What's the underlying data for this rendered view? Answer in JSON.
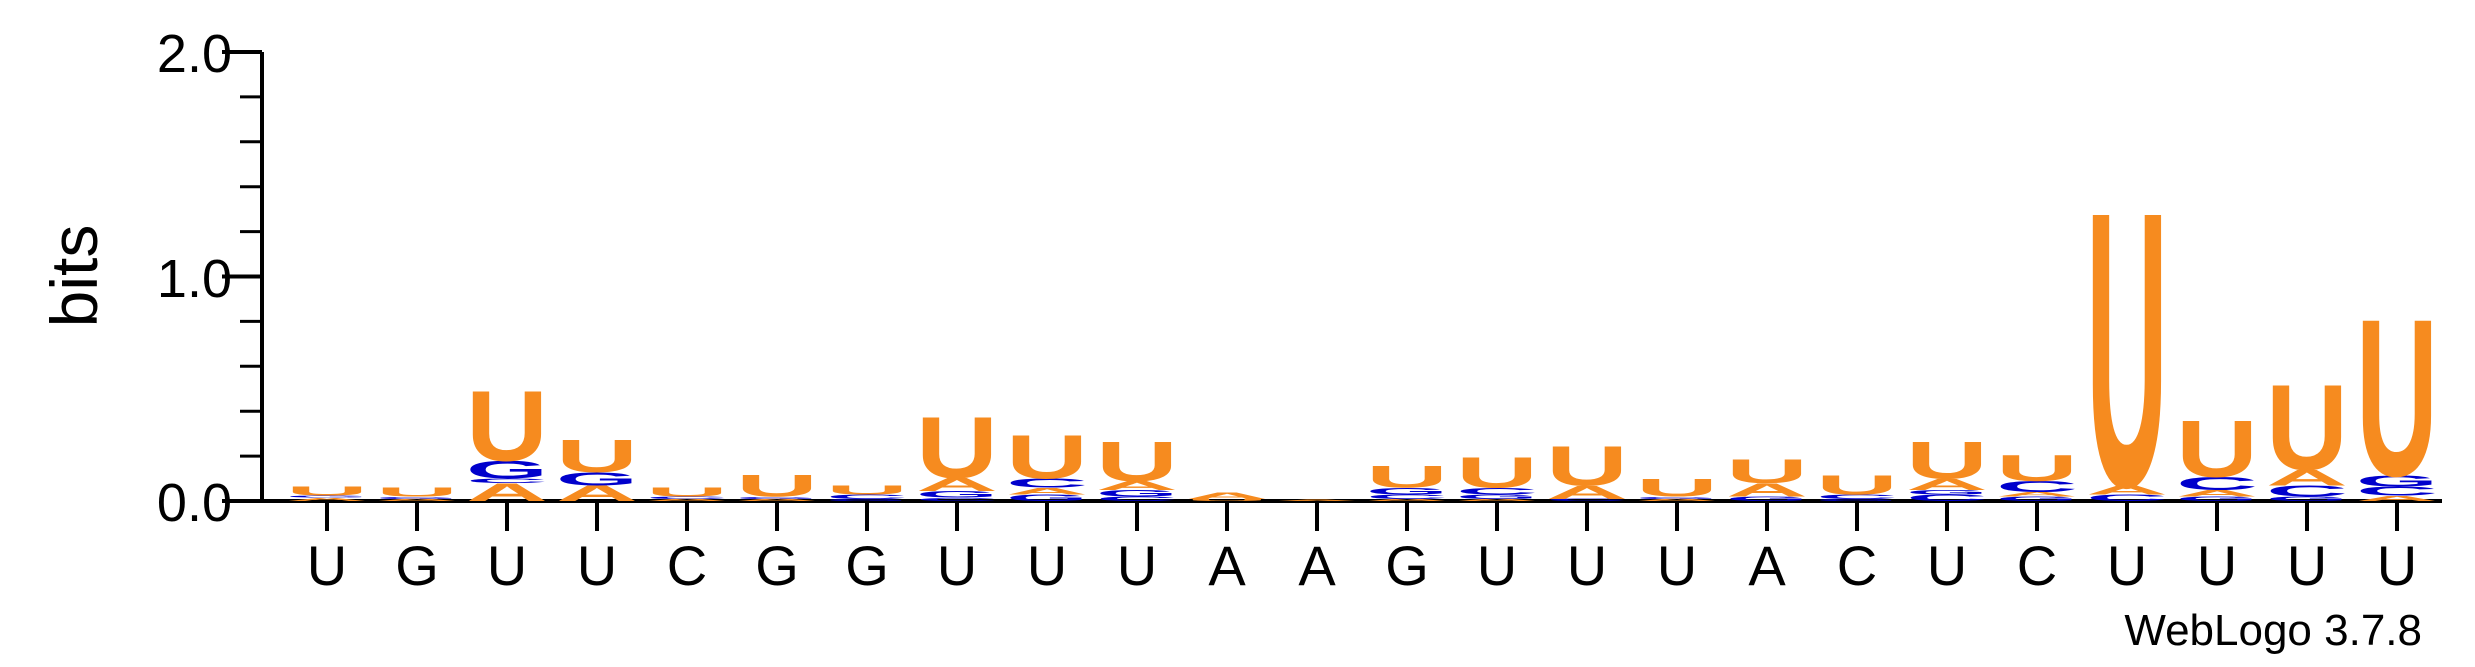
{
  "colors": {
    "U": "#f68b1f",
    "A": "#f68b1f",
    "G": "#0000cc",
    "C": "#0000cc",
    "axis": "#000000"
  },
  "chart_data": {
    "type": "sequence-logo",
    "ylabel": "bits",
    "ylim": [
      0,
      2.0
    ],
    "yticks": [
      "0.0",
      "1.0",
      "2.0"
    ],
    "credit": "WebLogo 3.7.8",
    "positions": [
      {
        "label": "U",
        "stack": [
          {
            "letter": "A",
            "bits": 0.015
          },
          {
            "letter": "G",
            "bits": 0.01
          },
          {
            "letter": "U",
            "bits": 0.04
          }
        ]
      },
      {
        "label": "G",
        "stack": [
          {
            "letter": "A",
            "bits": 0.01
          },
          {
            "letter": "G",
            "bits": 0.01
          },
          {
            "letter": "U",
            "bits": 0.04
          }
        ]
      },
      {
        "label": "U",
        "stack": [
          {
            "letter": "A",
            "bits": 0.08
          },
          {
            "letter": "C",
            "bits": 0.02
          },
          {
            "letter": "G",
            "bits": 0.08
          },
          {
            "letter": "U",
            "bits": 0.32
          }
        ]
      },
      {
        "label": "U",
        "stack": [
          {
            "letter": "A",
            "bits": 0.07
          },
          {
            "letter": "G",
            "bits": 0.06
          },
          {
            "letter": "U",
            "bits": 0.15
          }
        ]
      },
      {
        "label": "C",
        "stack": [
          {
            "letter": "A",
            "bits": 0.01
          },
          {
            "letter": "C",
            "bits": 0.01
          },
          {
            "letter": "U",
            "bits": 0.04
          }
        ]
      },
      {
        "label": "G",
        "stack": [
          {
            "letter": "A",
            "bits": 0.01
          },
          {
            "letter": "G",
            "bits": 0.01
          },
          {
            "letter": "U",
            "bits": 0.1
          }
        ]
      },
      {
        "label": "G",
        "stack": [
          {
            "letter": "G",
            "bits": 0.01
          },
          {
            "letter": "C",
            "bits": 0.02
          },
          {
            "letter": "U",
            "bits": 0.04
          }
        ]
      },
      {
        "label": "U",
        "stack": [
          {
            "letter": "C",
            "bits": 0.015
          },
          {
            "letter": "G",
            "bits": 0.03
          },
          {
            "letter": "A",
            "bits": 0.06
          },
          {
            "letter": "U",
            "bits": 0.28
          }
        ]
      },
      {
        "label": "U",
        "stack": [
          {
            "letter": "G",
            "bits": 0.03
          },
          {
            "letter": "A",
            "bits": 0.03
          },
          {
            "letter": "C",
            "bits": 0.04
          },
          {
            "letter": "U",
            "bits": 0.2
          }
        ]
      },
      {
        "label": "U",
        "stack": [
          {
            "letter": "C",
            "bits": 0.02
          },
          {
            "letter": "G",
            "bits": 0.03
          },
          {
            "letter": "A",
            "bits": 0.04
          },
          {
            "letter": "U",
            "bits": 0.18
          }
        ]
      },
      {
        "label": "A",
        "stack": [
          {
            "letter": "U",
            "bits": 0.01
          },
          {
            "letter": "A",
            "bits": 0.03
          }
        ]
      },
      {
        "label": "A",
        "stack": [
          {
            "letter": "A",
            "bits": 0.005
          }
        ]
      },
      {
        "label": "G",
        "stack": [
          {
            "letter": "A",
            "bits": 0.01
          },
          {
            "letter": "C",
            "bits": 0.02
          },
          {
            "letter": "G",
            "bits": 0.03
          },
          {
            "letter": "U",
            "bits": 0.1
          }
        ]
      },
      {
        "label": "U",
        "stack": [
          {
            "letter": "A",
            "bits": 0.01
          },
          {
            "letter": "G",
            "bits": 0.02
          },
          {
            "letter": "C",
            "bits": 0.03
          },
          {
            "letter": "U",
            "bits": 0.14
          }
        ]
      },
      {
        "label": "U",
        "stack": [
          {
            "letter": "C",
            "bits": 0.01
          },
          {
            "letter": "A",
            "bits": 0.06
          },
          {
            "letter": "U",
            "bits": 0.18
          }
        ]
      },
      {
        "label": "U",
        "stack": [
          {
            "letter": "A",
            "bits": 0.01
          },
          {
            "letter": "G",
            "bits": 0.01
          },
          {
            "letter": "U",
            "bits": 0.08
          }
        ]
      },
      {
        "label": "A",
        "stack": [
          {
            "letter": "G",
            "bits": 0.02
          },
          {
            "letter": "A",
            "bits": 0.06
          },
          {
            "letter": "U",
            "bits": 0.11
          }
        ]
      },
      {
        "label": "C",
        "stack": [
          {
            "letter": "G",
            "bits": 0.01
          },
          {
            "letter": "C",
            "bits": 0.02
          },
          {
            "letter": "U",
            "bits": 0.09
          }
        ]
      },
      {
        "label": "U",
        "stack": [
          {
            "letter": "C",
            "bits": 0.03
          },
          {
            "letter": "G",
            "bits": 0.02
          },
          {
            "letter": "A",
            "bits": 0.05
          },
          {
            "letter": "U",
            "bits": 0.17
          }
        ]
      },
      {
        "label": "C",
        "stack": [
          {
            "letter": "G",
            "bits": 0.02
          },
          {
            "letter": "A",
            "bits": 0.02
          },
          {
            "letter": "C",
            "bits": 0.05
          },
          {
            "letter": "U",
            "bits": 0.12
          }
        ]
      },
      {
        "label": "U",
        "stack": [
          {
            "letter": "C",
            "bits": 0.03
          },
          {
            "letter": "A",
            "bits": 0.04
          },
          {
            "letter": "U",
            "bits": 1.26
          }
        ]
      },
      {
        "label": "U",
        "stack": [
          {
            "letter": "G",
            "bits": 0.02
          },
          {
            "letter": "A",
            "bits": 0.03
          },
          {
            "letter": "C",
            "bits": 0.06
          },
          {
            "letter": "U",
            "bits": 0.26
          }
        ]
      },
      {
        "label": "U",
        "stack": [
          {
            "letter": "G",
            "bits": 0.02
          },
          {
            "letter": "C",
            "bits": 0.05
          },
          {
            "letter": "A",
            "bits": 0.07
          },
          {
            "letter": "U",
            "bits": 0.39
          }
        ]
      },
      {
        "label": "U",
        "stack": [
          {
            "letter": "A",
            "bits": 0.025
          },
          {
            "letter": "C",
            "bits": 0.04
          },
          {
            "letter": "G",
            "bits": 0.05
          },
          {
            "letter": "U",
            "bits": 0.72
          }
        ]
      }
    ]
  }
}
